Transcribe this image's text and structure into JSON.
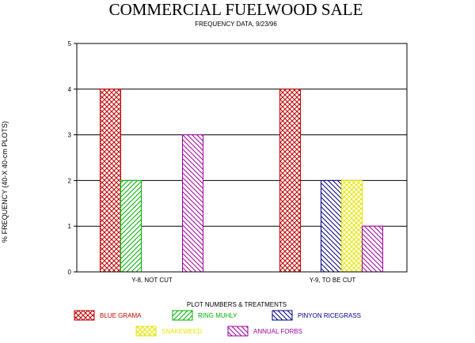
{
  "chart_data": {
    "type": "bar",
    "title": "COMMERCIAL FUELWOOD SALE",
    "subtitle": "FREQUENCY DATA, 9/23/96",
    "ylabel": "% FREQUENCY (40-X 40-cm PLOTS)",
    "legend_title": "PLOT NUMBERS & TREATMENTS",
    "categories": [
      "Y-8, NOT CUT",
      "Y-9, TO BE CUT"
    ],
    "ylim": [
      0,
      5
    ],
    "yticks": [
      "0",
      "1",
      "2",
      "3",
      "4",
      "5"
    ],
    "grid": true,
    "legend_position": "bottom",
    "series": [
      {
        "name": "BLUE GRAMA",
        "values": [
          4,
          4
        ],
        "color": "#c00000",
        "pattern": "crosshatch"
      },
      {
        "name": "RING MUHLY",
        "values": [
          2,
          0
        ],
        "color": "#00b000",
        "pattern": "hatch-right"
      },
      {
        "name": "PINYON RICEGRASS",
        "values": [
          0,
          2
        ],
        "color": "#000080",
        "pattern": "hatch-left"
      },
      {
        "name": "SNAKEWEED",
        "values": [
          0,
          2
        ],
        "color": "#e6e600",
        "pattern": "crosshatch"
      },
      {
        "name": "ANNUAL FORBS",
        "values": [
          3,
          1
        ],
        "color": "#a000a0",
        "pattern": "hatch-left"
      }
    ]
  }
}
